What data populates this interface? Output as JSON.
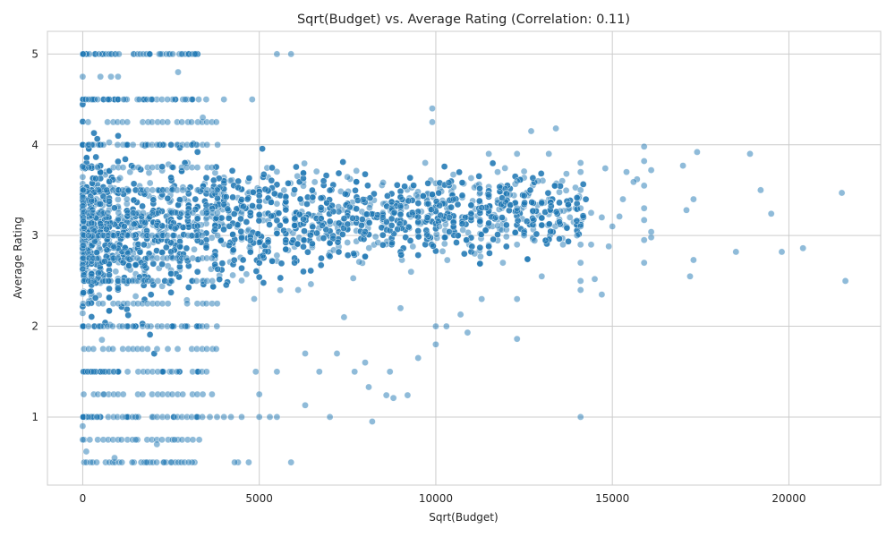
{
  "chart_data": {
    "type": "scatter",
    "title": "Sqrt(Budget) vs. Average Rating (Correlation: 0.11)",
    "xlabel": "Sqrt(Budget)",
    "ylabel": "Average Rating",
    "xlim": [
      -1000,
      22600
    ],
    "ylim": [
      0.25,
      5.25
    ],
    "xticks": [
      0,
      5000,
      10000,
      15000,
      20000
    ],
    "yticks": [
      1,
      2,
      3,
      4,
      5
    ],
    "grid": true,
    "point_color": "#1f77b4",
    "point_edge_color": "#ffffff",
    "point_opacity": 0.5,
    "bulk_region": {
      "x": [
        0,
        14200
      ],
      "y_center": 3.05,
      "note": "dense cloud of several thousand points; many overlap; common ratings quantized at 0.5/1.0/1.5/.../5.0"
    },
    "points": [
      [
        21600,
        2.5
      ],
      [
        21500,
        3.47
      ],
      [
        20400,
        2.86
      ],
      [
        19800,
        2.82
      ],
      [
        19500,
        3.24
      ],
      [
        19200,
        3.5
      ],
      [
        18900,
        3.9
      ],
      [
        18500,
        2.82
      ],
      [
        17400,
        3.92
      ],
      [
        17300,
        3.4
      ],
      [
        17300,
        2.73
      ],
      [
        17200,
        2.55
      ],
      [
        17100,
        3.28
      ],
      [
        17000,
        3.77
      ],
      [
        16100,
        3.72
      ],
      [
        16100,
        2.98
      ],
      [
        16100,
        3.04
      ],
      [
        15900,
        3.98
      ],
      [
        15900,
        3.82
      ],
      [
        15900,
        3.55
      ],
      [
        15900,
        3.3
      ],
      [
        15900,
        3.17
      ],
      [
        15900,
        2.95
      ],
      [
        15900,
        2.7
      ],
      [
        15700,
        3.62
      ],
      [
        15600,
        3.59
      ],
      [
        15400,
        3.7
      ],
      [
        15300,
        3.4
      ],
      [
        15200,
        3.21
      ],
      [
        15000,
        3.1
      ],
      [
        14900,
        2.88
      ],
      [
        14800,
        3.74
      ],
      [
        14700,
        3.2
      ],
      [
        14700,
        2.35
      ],
      [
        14500,
        2.52
      ],
      [
        14400,
        3.25
      ],
      [
        14400,
        2.9
      ],
      [
        14100,
        1.0
      ],
      [
        14100,
        2.4
      ],
      [
        14100,
        2.5
      ],
      [
        14100,
        2.7
      ],
      [
        14100,
        2.9
      ],
      [
        14100,
        3.1
      ],
      [
        14100,
        3.3
      ],
      [
        14100,
        3.5
      ],
      [
        14100,
        3.7
      ],
      [
        14100,
        3.8
      ],
      [
        14000,
        3.0
      ],
      [
        13800,
        3.2
      ],
      [
        13700,
        3.68
      ],
      [
        13600,
        2.9
      ],
      [
        13400,
        4.18
      ],
      [
        13200,
        3.9
      ],
      [
        13000,
        2.55
      ],
      [
        12900,
        3.6
      ],
      [
        12700,
        4.15
      ],
      [
        12500,
        3.0
      ],
      [
        12300,
        1.86
      ],
      [
        12300,
        2.3
      ],
      [
        12300,
        2.9
      ],
      [
        12300,
        3.3
      ],
      [
        12300,
        3.6
      ],
      [
        12300,
        3.9
      ],
      [
        12100,
        3.45
      ],
      [
        11900,
        2.7
      ],
      [
        11700,
        3.2
      ],
      [
        11500,
        3.9
      ],
      [
        11300,
        2.3
      ],
      [
        11100,
        2.8
      ],
      [
        10900,
        1.93
      ],
      [
        10700,
        2.13
      ],
      [
        10500,
        3.4
      ],
      [
        10300,
        2.0
      ],
      [
        10100,
        3.1
      ],
      [
        10000,
        1.8
      ],
      [
        10000,
        2.0
      ],
      [
        9900,
        4.4
      ],
      [
        9900,
        4.25
      ],
      [
        9700,
        3.8
      ],
      [
        9500,
        1.65
      ],
      [
        9300,
        2.6
      ],
      [
        9200,
        1.24
      ],
      [
        9000,
        2.2
      ],
      [
        8800,
        1.21
      ],
      [
        8700,
        1.5
      ],
      [
        8600,
        1.24
      ],
      [
        8500,
        3.2
      ],
      [
        8200,
        0.95
      ],
      [
        8100,
        1.33
      ],
      [
        8000,
        1.6
      ],
      [
        7700,
        1.5
      ],
      [
        7400,
        2.1
      ],
      [
        7200,
        1.7
      ],
      [
        7000,
        1.0
      ],
      [
        6700,
        1.5
      ],
      [
        6300,
        1.13
      ],
      [
        6300,
        1.7
      ],
      [
        6100,
        2.4
      ],
      [
        5900,
        0.5
      ],
      [
        5900,
        5.0
      ],
      [
        5500,
        5.0
      ],
      [
        5500,
        1.0
      ],
      [
        5500,
        1.5
      ],
      [
        5300,
        1.0
      ],
      [
        5000,
        1.0
      ],
      [
        5000,
        1.25
      ],
      [
        4900,
        1.5
      ],
      [
        4800,
        4.5
      ],
      [
        4700,
        0.5
      ],
      [
        4500,
        1.0
      ],
      [
        4400,
        0.5
      ],
      [
        4300,
        0.5
      ],
      [
        4200,
        1.0
      ],
      [
        4000,
        4.5
      ],
      [
        4000,
        1.0
      ],
      [
        3600,
        1.0
      ],
      [
        3400,
        4.3
      ],
      [
        3300,
        0.75
      ],
      [
        3200,
        5.0
      ],
      [
        3100,
        0.5
      ],
      [
        2900,
        4.5
      ],
      [
        2800,
        5.0
      ],
      [
        2700,
        4.8
      ],
      [
        2500,
        0.5
      ],
      [
        2400,
        4.5
      ],
      [
        2200,
        5.0
      ],
      [
        2100,
        0.7
      ],
      [
        1900,
        5.0
      ],
      [
        1600,
        4.5
      ],
      [
        1400,
        0.5
      ],
      [
        1000,
        4.75
      ],
      [
        800,
        4.75
      ],
      [
        500,
        4.75
      ],
      [
        0,
        4.75
      ],
      [
        100,
        0.62
      ],
      [
        0,
        0.9
      ],
      [
        0,
        0.75
      ],
      [
        200,
        0.75
      ],
      [
        400,
        1.0
      ],
      [
        600,
        1.25
      ],
      [
        900,
        0.55
      ],
      [
        1100,
        0.75
      ],
      [
        1500,
        0.75
      ],
      [
        1800,
        0.5
      ],
      [
        2300,
        0.5
      ],
      [
        2600,
        0.75
      ],
      [
        3000,
        0.5
      ]
    ]
  }
}
